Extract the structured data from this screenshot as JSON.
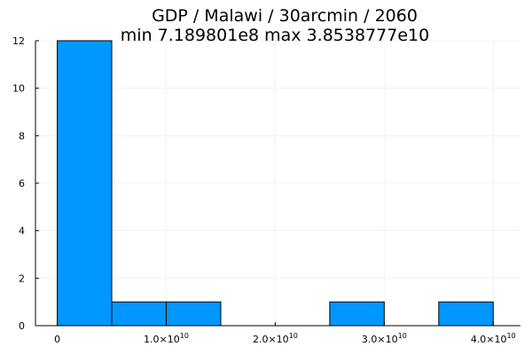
{
  "chart_data": {
    "type": "bar",
    "title": "GDP / Malawi / 30arcmin / 2060",
    "subtitle": "min 7.189801e8  max 3.8538777e10",
    "xlabel": "",
    "ylabel": "",
    "bins": [
      {
        "x0": 0,
        "x1": 5000000000,
        "count": 12
      },
      {
        "x0": 5000000000,
        "x1": 10000000000,
        "count": 1
      },
      {
        "x0": 10000000000,
        "x1": 15000000000,
        "count": 1
      },
      {
        "x0": 15000000000,
        "x1": 20000000000,
        "count": 0
      },
      {
        "x0": 20000000000,
        "x1": 25000000000,
        "count": 0
      },
      {
        "x0": 25000000000,
        "x1": 30000000000,
        "count": 1
      },
      {
        "x0": 30000000000,
        "x1": 35000000000,
        "count": 0
      },
      {
        "x0": 35000000000,
        "x1": 40000000000,
        "count": 1
      }
    ],
    "xlim": [
      -2000000000,
      42500000000
    ],
    "ylim": [
      0,
      12
    ],
    "x_ticks": [
      {
        "value": 0,
        "mantissa": "0",
        "exp": ""
      },
      {
        "value": 10000000000,
        "mantissa": "1.0×10",
        "exp": "10"
      },
      {
        "value": 20000000000,
        "mantissa": "2.0×10",
        "exp": "10"
      },
      {
        "value": 30000000000,
        "mantissa": "3.0×10",
        "exp": "10"
      },
      {
        "value": 40000000000,
        "mantissa": "4.0×10",
        "exp": "10"
      }
    ],
    "y_ticks": [
      0,
      2,
      4,
      6,
      8,
      10,
      12
    ],
    "grid": true,
    "legend": "none",
    "bar_color": "#0097ff",
    "bar_stroke": "#000000"
  }
}
